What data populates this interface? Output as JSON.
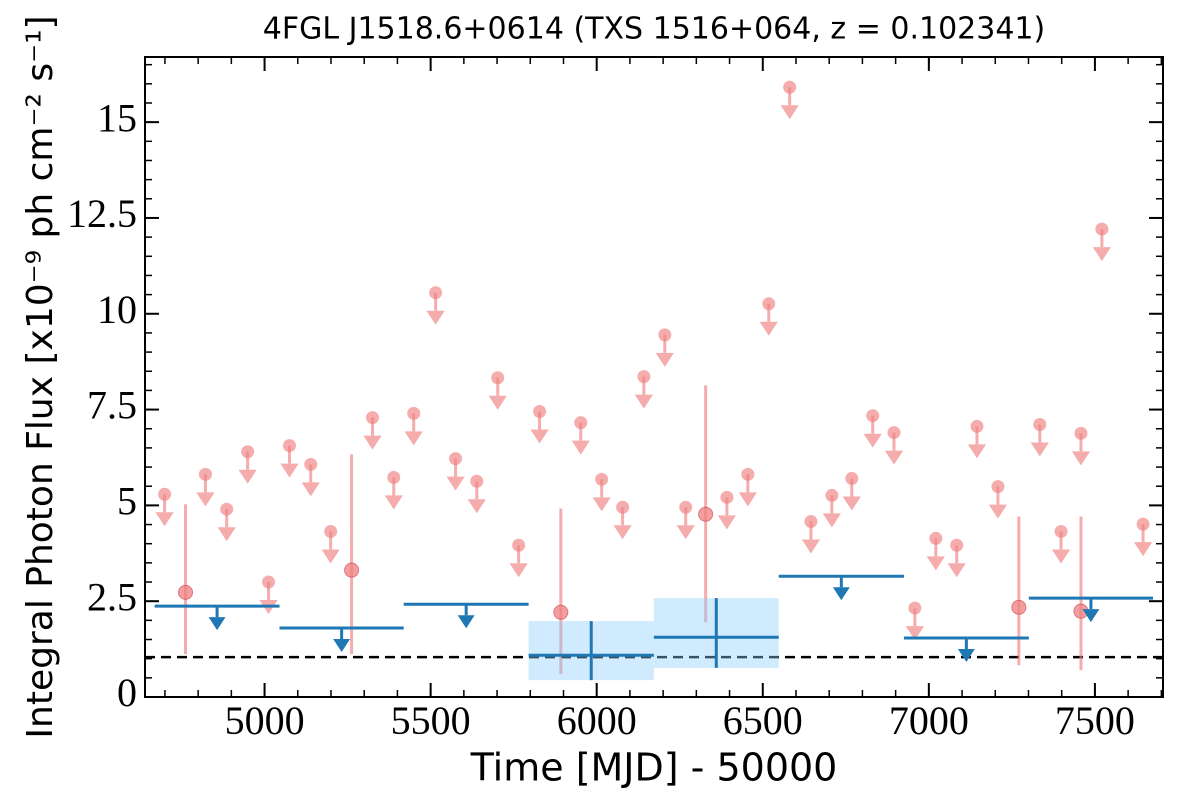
{
  "chart_data": {
    "type": "lightcurve",
    "title": "4FGL J1518.6+0614 (TXS 1516+064, z = 0.102341)",
    "x_label": "Time [MJD] - 50000",
    "y_label": "Integral Photon Flux [x10⁻⁹ ph cm⁻² s⁻¹]",
    "xlim": [
      4640,
      7705
    ],
    "ylim": [
      0,
      16.7
    ],
    "xticks": [
      5000,
      5500,
      6000,
      6500,
      7000,
      7500
    ],
    "yticks": [
      0,
      2.5,
      5,
      7.5,
      10,
      12.5,
      15
    ],
    "minor_xtick_step": 100,
    "minor_ytick_step": 0.5,
    "hline": 1.04,
    "series": [
      {
        "kind": "upper_limit_points",
        "color": "#f08080",
        "alpha": 0.65,
        "x": [
          4699,
          4822,
          4886,
          4949,
          5012,
          5075,
          5139,
          5199,
          5325,
          5389,
          5449,
          5515,
          5575,
          5639,
          5702,
          5765,
          5828,
          5952,
          6015,
          6078,
          6142,
          6205,
          6268,
          6392,
          6455,
          6518,
          6581,
          6645,
          6708,
          6768,
          6831,
          6895,
          6958,
          7021,
          7084,
          7145,
          7208,
          7334,
          7398,
          7458,
          7521,
          7645
        ],
        "values": [
          5.29,
          5.81,
          4.9,
          6.4,
          3.0,
          6.56,
          6.07,
          4.32,
          7.29,
          5.73,
          7.4,
          10.55,
          6.22,
          5.63,
          8.33,
          3.96,
          7.45,
          7.16,
          5.68,
          4.95,
          8.36,
          9.45,
          4.95,
          5.21,
          5.81,
          10.26,
          15.91,
          4.58,
          5.26,
          5.7,
          7.34,
          6.9,
          2.32,
          4.14,
          3.96,
          7.06,
          5.49,
          7.11,
          4.32,
          6.88,
          12.21,
          4.51
        ]
      },
      {
        "kind": "points",
        "color": "#f08080",
        "alpha": 0.65,
        "x": [
          4762,
          5262,
          5892,
          6328,
          7271,
          7458
        ],
        "values": [
          2.73,
          3.31,
          2.21,
          4.77,
          2.34,
          2.24
        ],
        "errors_minus": [
          1.61,
          2.19,
          1.61,
          2.82,
          1.51,
          1.54
        ],
        "errors_plus": [
          2.3,
          3.02,
          2.71,
          3.36,
          2.37,
          2.47
        ]
      },
      {
        "kind": "upper_limit_bins",
        "color": "#1f77b4",
        "x_low": [
          4669,
          5045,
          5419,
          6548,
          6925,
          7301
        ],
        "x_high": [
          5045,
          5419,
          5795,
          6925,
          7301,
          7675
        ],
        "values": [
          2.37,
          1.8,
          2.42,
          3.15,
          1.54,
          2.58
        ]
      },
      {
        "kind": "bins",
        "color": "#1f77b4",
        "band_color": "#87cefa",
        "band_alpha": 0.4,
        "x_low": [
          5795,
          6172
        ],
        "x_high": [
          6172,
          6548
        ],
        "values": [
          1.09,
          1.56
        ],
        "errors_minus": [
          0.65,
          0.8
        ],
        "errors_plus": [
          0.89,
          1.02
        ]
      }
    ]
  }
}
